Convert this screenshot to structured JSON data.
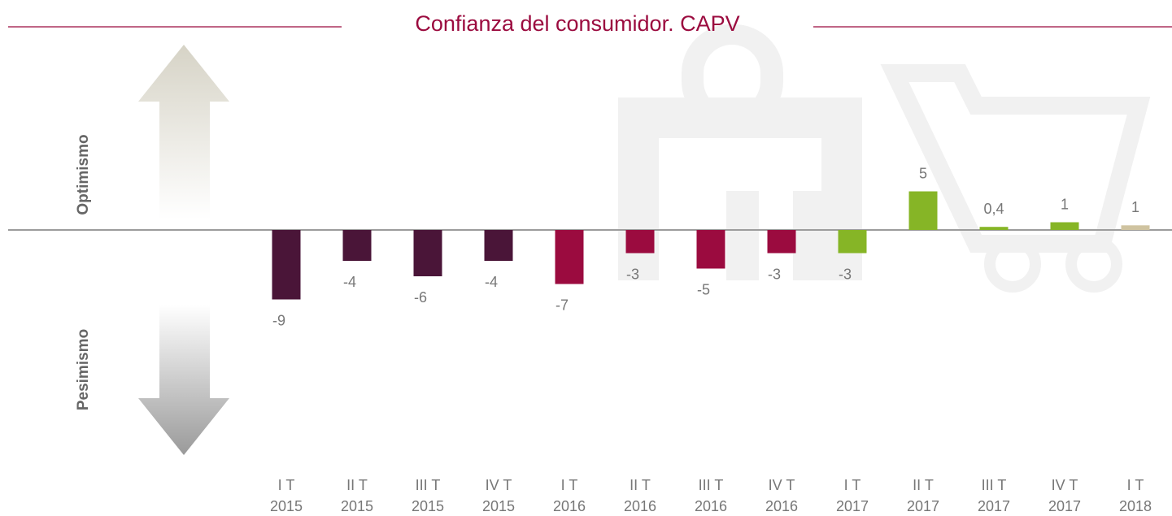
{
  "chart_data": {
    "type": "bar",
    "title": "Confianza del consumidor. CAPV",
    "annotations": [
      "Optimismo",
      "Pesimismo"
    ],
    "categories": [
      [
        "I T",
        "2015"
      ],
      [
        "II T",
        "2015"
      ],
      [
        "III T",
        "2015"
      ],
      [
        "IV T",
        "2015"
      ],
      [
        "I T",
        "2016"
      ],
      [
        "II T",
        "2016"
      ],
      [
        "III T",
        "2016"
      ],
      [
        "IV T",
        "2016"
      ],
      [
        "I T",
        "2017"
      ],
      [
        "II T",
        "2017"
      ],
      [
        "III T",
        "2017"
      ],
      [
        "IV T",
        "2017"
      ],
      [
        "I T",
        "2018"
      ]
    ],
    "values": [
      -9,
      -4,
      -6,
      -4,
      -7,
      -3,
      -5,
      -3,
      -3,
      5,
      0.4,
      1,
      0.6
    ],
    "value_labels": [
      "-9",
      "-4",
      "-6",
      "-4",
      "-7",
      "-3",
      "-5",
      "-3",
      "-3",
      "5",
      "0,4",
      "1",
      "1"
    ],
    "colors": [
      "#4a1538",
      "#4a1538",
      "#4a1538",
      "#4a1538",
      "#9b0b3f",
      "#9b0b3f",
      "#9b0b3f",
      "#9b0b3f",
      "#86b526",
      "#86b526",
      "#86b526",
      "#86b526",
      "#cfc3a0"
    ],
    "ylim": [
      -10,
      10
    ]
  }
}
